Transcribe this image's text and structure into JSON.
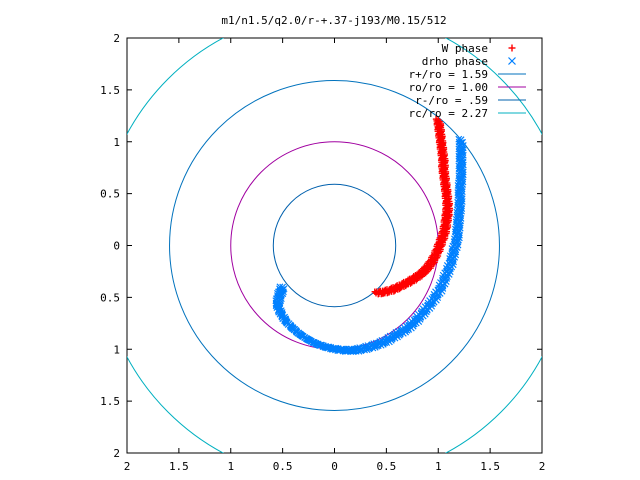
{
  "chart_data": {
    "type": "scatter",
    "title": "m1/n1.5/q2.0/r-+.37-j193/M0.15/512",
    "xlabel": "",
    "ylabel": "",
    "xlim": [
      -2,
      2
    ],
    "ylim": [
      -2,
      2
    ],
    "x_ticks": [
      {
        "value": -2,
        "label": "2"
      },
      {
        "value": -1.5,
        "label": "1.5"
      },
      {
        "value": -1,
        "label": "1"
      },
      {
        "value": -0.5,
        "label": "0.5"
      },
      {
        "value": 0,
        "label": "0"
      },
      {
        "value": 0.5,
        "label": "0.5"
      },
      {
        "value": 1,
        "label": "1"
      },
      {
        "value": 1.5,
        "label": "1.5"
      },
      {
        "value": 2,
        "label": "2"
      }
    ],
    "y_ticks": [
      {
        "value": 2,
        "label": "2"
      },
      {
        "value": 1.5,
        "label": "1.5"
      },
      {
        "value": 1,
        "label": "1"
      },
      {
        "value": 0.5,
        "label": "0.5"
      },
      {
        "value": 0,
        "label": "0"
      },
      {
        "value": -0.5,
        "label": "0.5"
      },
      {
        "value": -1,
        "label": "1"
      },
      {
        "value": -1.5,
        "label": "1.5"
      },
      {
        "value": -2,
        "label": "2"
      }
    ],
    "grid": false,
    "legend_position": "top-right",
    "series": [
      {
        "name": "W phase",
        "kind": "points",
        "marker": "+",
        "color": "#ff0000",
        "points": [
          [
            0.4,
            -0.46
          ],
          [
            0.47,
            -0.45
          ],
          [
            0.55,
            -0.43
          ],
          [
            0.62,
            -0.4
          ],
          [
            0.7,
            -0.36
          ],
          [
            0.77,
            -0.32
          ],
          [
            0.84,
            -0.27
          ],
          [
            0.9,
            -0.21
          ],
          [
            0.95,
            -0.14
          ],
          [
            0.99,
            -0.06
          ],
          [
            1.02,
            0.02
          ],
          [
            1.05,
            0.1
          ],
          [
            1.07,
            0.18
          ],
          [
            1.08,
            0.26
          ],
          [
            1.09,
            0.33
          ],
          [
            1.09,
            0.41
          ],
          [
            1.08,
            0.5
          ],
          [
            1.07,
            0.58
          ],
          [
            1.06,
            0.66
          ],
          [
            1.05,
            0.74
          ],
          [
            1.05,
            0.82
          ],
          [
            1.04,
            0.9
          ],
          [
            1.03,
            0.98
          ],
          [
            1.02,
            1.06
          ],
          [
            1.01,
            1.14
          ],
          [
            1.0,
            1.21
          ]
        ]
      },
      {
        "name": "drho phase",
        "kind": "points",
        "marker": "x",
        "color": "#0080ff",
        "points": [
          [
            -0.5,
            -0.4
          ],
          [
            -0.53,
            -0.48
          ],
          [
            -0.55,
            -0.57
          ],
          [
            -0.52,
            -0.65
          ],
          [
            -0.47,
            -0.73
          ],
          [
            -0.4,
            -0.8
          ],
          [
            -0.33,
            -0.86
          ],
          [
            -0.25,
            -0.91
          ],
          [
            -0.17,
            -0.95
          ],
          [
            -0.08,
            -0.98
          ],
          [
            0.01,
            -1.0
          ],
          [
            0.1,
            -1.01
          ],
          [
            0.2,
            -1.01
          ],
          [
            0.3,
            -0.99
          ],
          [
            0.4,
            -0.96
          ],
          [
            0.5,
            -0.92
          ],
          [
            0.6,
            -0.86
          ],
          [
            0.7,
            -0.8
          ],
          [
            0.79,
            -0.72
          ],
          [
            0.87,
            -0.63
          ],
          [
            0.95,
            -0.53
          ],
          [
            1.02,
            -0.42
          ],
          [
            1.07,
            -0.3
          ],
          [
            1.12,
            -0.18
          ],
          [
            1.15,
            -0.06
          ],
          [
            1.18,
            0.06
          ],
          [
            1.19,
            0.18
          ],
          [
            1.2,
            0.3
          ],
          [
            1.21,
            0.42
          ],
          [
            1.21,
            0.54
          ],
          [
            1.22,
            0.66
          ],
          [
            1.22,
            0.78
          ],
          [
            1.22,
            0.9
          ],
          [
            1.22,
            1.02
          ]
        ]
      },
      {
        "name": "r+/ro = 1.59",
        "kind": "circle",
        "radius": 1.59,
        "color": "#0072bd"
      },
      {
        "name": "ro/ro = 1.00",
        "kind": "circle",
        "radius": 1.0,
        "color": "#a000a0"
      },
      {
        "name": "r-/ro = .59",
        "kind": "circle",
        "radius": 0.59,
        "color": "#0060ad"
      },
      {
        "name": "rc/ro = 2.27",
        "kind": "circle",
        "radius": 2.27,
        "color": "#00b0c0"
      }
    ]
  }
}
